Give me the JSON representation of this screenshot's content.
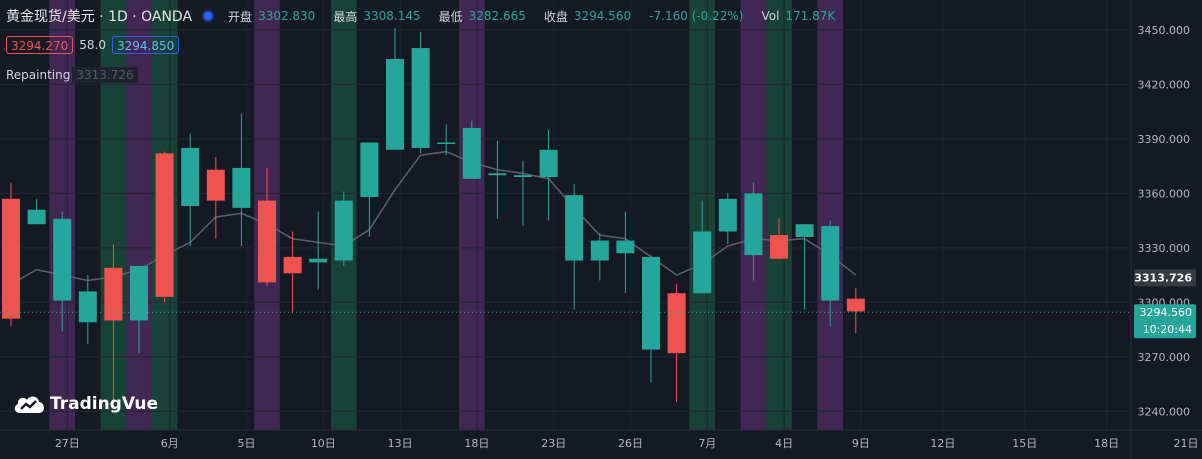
{
  "legend": {
    "symbol": "黄金现货/美元 · 1D · OANDA",
    "open_label": "开盘",
    "open": "3302.830",
    "high_label": "最高",
    "high": "3308.145",
    "low_label": "最低",
    "low": "3282.665",
    "close_label": "收盘",
    "close": "3294.560",
    "change": "-7.160 (-0.22%)",
    "vol_label": "Vol",
    "vol": "171.87K"
  },
  "quote": {
    "bid": "3294.270",
    "spread": "58.0",
    "ask": "3294.850"
  },
  "indicator": {
    "label": "Repainting",
    "value": "3313.726"
  },
  "logo": "TradingVue",
  "colors": {
    "background": "#151924",
    "up": "#26a69a",
    "down": "#ef5350",
    "purple_band": "#4a2a5e",
    "green_band": "#1a4a3a",
    "ma": "#5d606b"
  },
  "chart_data": {
    "type": "candlestick",
    "price_axis": {
      "ticks": [
        "3450.000",
        "3420.000",
        "3390.000",
        "3360.000",
        "3330.000",
        "3300.000",
        "3270.000",
        "3240.000"
      ],
      "range": [
        3230,
        3460
      ]
    },
    "time_axis": [
      "27日",
      "6月",
      "5日",
      "10日",
      "13日",
      "18日",
      "23日",
      "26日",
      "7月",
      "4日",
      "9日",
      "12日",
      "15日",
      "18日",
      "21日"
    ],
    "candles": [
      {
        "o": 3357,
        "h": 3366,
        "l": 3287,
        "c": 3291
      },
      {
        "o": 3343,
        "h": 3357,
        "l": 3343,
        "c": 3351
      },
      {
        "o": 3301,
        "h": 3350,
        "l": 3284,
        "c": 3346
      },
      {
        "o": 3289,
        "h": 3315,
        "l": 3277,
        "c": 3306
      },
      {
        "o": 3319,
        "h": 3332,
        "l": 3244,
        "c": 3290
      },
      {
        "o": 3290,
        "h": 3320,
        "l": 3272,
        "c": 3320
      },
      {
        "o": 3382,
        "h": 3383,
        "l": 3300,
        "c": 3303
      },
      {
        "o": 3353,
        "h": 3393,
        "l": 3331,
        "c": 3385
      },
      {
        "o": 3373,
        "h": 3380,
        "l": 3335,
        "c": 3356
      },
      {
        "o": 3352,
        "h": 3404,
        "l": 3331,
        "c": 3374
      },
      {
        "o": 3356,
        "h": 3374,
        "l": 3309,
        "c": 3311
      },
      {
        "o": 3325,
        "h": 3339,
        "l": 3294,
        "c": 3316
      },
      {
        "o": 3322,
        "h": 3350,
        "l": 3307,
        "c": 3324
      },
      {
        "o": 3323,
        "h": 3361,
        "l": 3320,
        "c": 3356
      },
      {
        "o": 3358,
        "h": 3386,
        "l": 3336,
        "c": 3388
      },
      {
        "o": 3384,
        "h": 3451,
        "l": 3384,
        "c": 3434
      },
      {
        "o": 3385,
        "h": 3449,
        "l": 3382,
        "c": 3440
      },
      {
        "o": 3388,
        "h": 3398,
        "l": 3381,
        "c": 3388
      },
      {
        "o": 3368,
        "h": 3400,
        "l": 3368,
        "c": 3396
      },
      {
        "o": 3370,
        "h": 3389,
        "l": 3346,
        "c": 3371
      },
      {
        "o": 3369,
        "h": 3378,
        "l": 3342,
        "c": 3370
      },
      {
        "o": 3369,
        "h": 3395,
        "l": 3345,
        "c": 3384
      },
      {
        "o": 3323,
        "h": 3365,
        "l": 3296,
        "c": 3359
      },
      {
        "o": 3323,
        "h": 3338,
        "l": 3312,
        "c": 3334
      },
      {
        "o": 3327,
        "h": 3350,
        "l": 3305,
        "c": 3334
      },
      {
        "o": 3274,
        "h": 3326,
        "l": 3256,
        "c": 3325
      },
      {
        "o": 3305,
        "h": 3310,
        "l": 3245,
        "c": 3272
      },
      {
        "o": 3305,
        "h": 3356,
        "l": 3305,
        "c": 3339
      },
      {
        "o": 3339,
        "h": 3360,
        "l": 3332,
        "c": 3357
      },
      {
        "o": 3326,
        "h": 3366,
        "l": 3312,
        "c": 3360
      },
      {
        "o": 3337,
        "h": 3346,
        "l": 3324,
        "c": 3324
      },
      {
        "o": 3336,
        "h": 3342,
        "l": 3296,
        "c": 3343
      },
      {
        "o": 3301,
        "h": 3345,
        "l": 3287,
        "c": 3342
      },
      {
        "o": 3302,
        "h": 3308,
        "l": 3283,
        "c": 3295
      }
    ],
    "ma_line": [
      3310,
      3318,
      3315,
      3312,
      3314,
      3318,
      3326,
      3333,
      3347,
      3349,
      3343,
      3335,
      3333,
      3331,
      3340,
      3362,
      3381,
      3383,
      3377,
      3373,
      3371,
      3368,
      3352,
      3337,
      3335,
      3325,
      3315,
      3321,
      3331,
      3335,
      3334,
      3335,
      3326,
      3315
    ],
    "last_price": "3294.560",
    "countdown": "10:20:44",
    "indicator_value": "3313.726",
    "bands": [
      {
        "from": 2,
        "to": 2,
        "color": "purple"
      },
      {
        "from": 4,
        "to": 4,
        "color": "green"
      },
      {
        "from": 5,
        "to": 5,
        "color": "purple"
      },
      {
        "from": 6,
        "to": 6,
        "color": "green"
      },
      {
        "from": 10,
        "to": 10,
        "color": "purple"
      },
      {
        "from": 13,
        "to": 13,
        "color": "green"
      },
      {
        "from": 18,
        "to": 18,
        "color": "purple"
      },
      {
        "from": 27,
        "to": 27,
        "color": "green"
      },
      {
        "from": 29,
        "to": 29,
        "color": "purple"
      },
      {
        "from": 30,
        "to": 30,
        "color": "green"
      },
      {
        "from": 32,
        "to": 32,
        "color": "purple"
      }
    ]
  }
}
